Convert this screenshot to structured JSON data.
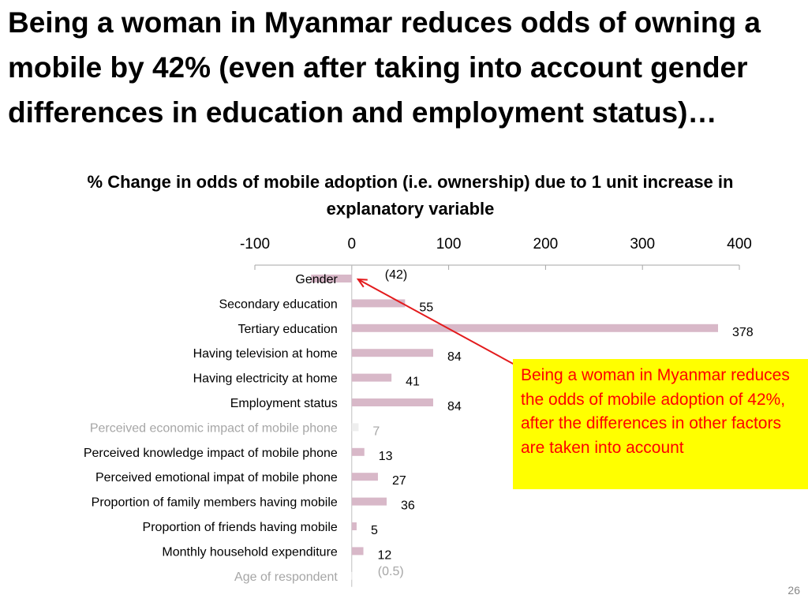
{
  "slide": {
    "title": "Being a woman in Myanmar reduces odds of owning a mobile by 42% (even after taking into account gender differences in education and employment status)…",
    "callout": "Being a woman in Myanmar reduces the odds of mobile adoption of 42%, after the differences in other factors are taken into account",
    "page_number": "26"
  },
  "colors": {
    "bar": "#d8b8c8",
    "bar_faded": "#eeeeee",
    "arrow": "#e31a1c",
    "callout_bg": "#ffff00",
    "callout_text": "#ff0000",
    "faded_text": "#a6a6a6"
  },
  "chart_data": {
    "type": "bar",
    "orientation": "horizontal",
    "title": "% Change in odds of mobile adoption (i.e. ownership) due to 1 unit increase in explanatory variable",
    "xlim": [
      -100,
      400
    ],
    "x_ticks": [
      -100,
      0,
      100,
      200,
      300,
      400
    ],
    "axis_position": "top",
    "grid": false,
    "categories": [
      "Gender",
      "Secondary education",
      "Tertiary education",
      "Having television at home",
      "Having electricity at home",
      "Employment status",
      "Perceived economic impact of mobile phone",
      "Perceived knowledge  impact of mobile phone",
      "Perceived emotional  impat of mobile phone",
      "Proportion of family members having mobile",
      "Proportion of friends having mobile",
      "Monthly household expenditure",
      "Age of respondent"
    ],
    "values": [
      -42,
      55,
      378,
      84,
      41,
      84,
      7,
      13,
      27,
      36,
      5,
      12,
      -0.5
    ],
    "data_labels": [
      "(42)",
      "55",
      "378",
      "84",
      "41",
      "84",
      "7",
      "13",
      "27",
      "36",
      "5",
      "12",
      "(0.5)"
    ],
    "faded": [
      false,
      false,
      false,
      false,
      false,
      false,
      true,
      false,
      false,
      false,
      false,
      false,
      true
    ]
  }
}
